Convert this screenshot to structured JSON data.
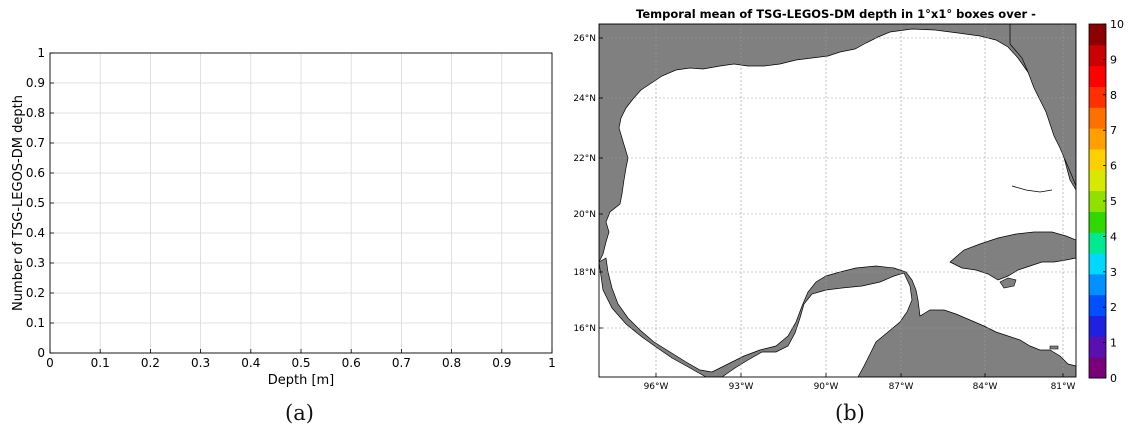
{
  "panel_a": {
    "caption": "(a)",
    "chart_data": {
      "type": "bar",
      "xlabel": "Depth [m]",
      "ylabel": "Number of TSG-LEGOS-DM depth",
      "xlim": [
        0,
        1
      ],
      "ylim": [
        0,
        1
      ],
      "x_ticks": [
        "0",
        "0.1",
        "0.2",
        "0.3",
        "0.4",
        "0.5",
        "0.6",
        "0.7",
        "0.8",
        "0.9",
        "1"
      ],
      "y_ticks": [
        "0",
        "0.1",
        "0.2",
        "0.3",
        "0.4",
        "0.5",
        "0.6",
        "0.7",
        "0.8",
        "0.9",
        "1"
      ],
      "grid": true,
      "values": []
    }
  },
  "panel_b": {
    "caption": "(b)",
    "chart_data": {
      "type": "heatmap",
      "title": "Temporal mean of TSG-LEGOS-DM depth in 1°x1° boxes over -",
      "lon_ticks": [
        "96°W",
        "93°W",
        "90°W",
        "87°W",
        "84°W",
        "81°W"
      ],
      "lat_ticks": [
        "16°N",
        "18°N",
        "20°N",
        "22°N",
        "24°N",
        "26°N"
      ],
      "colorbar": {
        "range": [
          0,
          10
        ],
        "ticks": [
          "0",
          "1",
          "2",
          "3",
          "4",
          "5",
          "6",
          "7",
          "8",
          "9",
          "10"
        ],
        "colormap": [
          "#7a007a",
          "#5a10b0",
          "#2020e0",
          "#0050ff",
          "#0090ff",
          "#00d8ff",
          "#00e890",
          "#30d800",
          "#90e000",
          "#d8e800",
          "#ffd000",
          "#ffa000",
          "#ff7000",
          "#ff3000",
          "#ff0000",
          "#cc0000",
          "#8b0000"
        ]
      },
      "grid": true,
      "land_color": "#808080",
      "values": []
    }
  }
}
